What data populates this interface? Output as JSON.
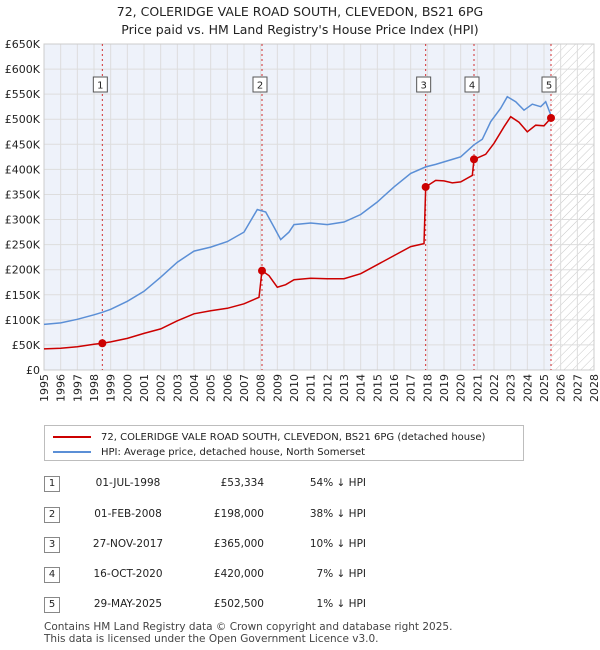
{
  "chart_data": {
    "type": "line",
    "title_line1": "72, COLERIDGE VALE ROAD SOUTH, CLEVEDON, BS21 6PG",
    "title_line2": "Price paid vs. HM Land Registry's House Price Index (HPI)",
    "xlim": [
      1995,
      2028
    ],
    "ylim": [
      0,
      650000
    ],
    "y_ticks": [
      0,
      50000,
      100000,
      150000,
      200000,
      250000,
      300000,
      350000,
      400000,
      450000,
      500000,
      550000,
      600000,
      650000
    ],
    "y_tick_labels": [
      "£0",
      "£50K",
      "£100K",
      "£150K",
      "£200K",
      "£250K",
      "£300K",
      "£350K",
      "£400K",
      "£450K",
      "£500K",
      "£550K",
      "£600K",
      "£650K"
    ],
    "x_ticks": [
      1995,
      1996,
      1997,
      1998,
      1999,
      2000,
      2001,
      2002,
      2003,
      2004,
      2005,
      2006,
      2007,
      2008,
      2009,
      2010,
      2011,
      2012,
      2013,
      2014,
      2015,
      2016,
      2017,
      2018,
      2019,
      2020,
      2021,
      2022,
      2023,
      2024,
      2025,
      2026,
      2027,
      2028
    ],
    "hatch_from": 2025.42,
    "colors": {
      "property": "#cc0000",
      "hpi": "#5b8fd6",
      "marker_line": "#cc0000",
      "grid": "#dddddd",
      "plot_bg": "#eef2fa"
    },
    "series": [
      {
        "name": "72, COLERIDGE VALE ROAD SOUTH, CLEVEDON, BS21 6PG (detached house)",
        "points": [
          [
            1995.0,
            42000
          ],
          [
            1996.0,
            43500
          ],
          [
            1997.0,
            46500
          ],
          [
            1998.0,
            51500
          ],
          [
            1998.5,
            53334
          ],
          [
            1999.0,
            56000
          ],
          [
            2000.0,
            63000
          ],
          [
            2001.0,
            73000
          ],
          [
            2002.0,
            82000
          ],
          [
            2003.0,
            98000
          ],
          [
            2004.0,
            112000
          ],
          [
            2005.0,
            118000
          ],
          [
            2006.0,
            123000
          ],
          [
            2007.0,
            132000
          ],
          [
            2007.9,
            145000
          ],
          [
            2008.08,
            198000
          ],
          [
            2008.5,
            188000
          ],
          [
            2009.0,
            165000
          ],
          [
            2009.5,
            170000
          ],
          [
            2010.0,
            180000
          ],
          [
            2011.0,
            183000
          ],
          [
            2012.0,
            182000
          ],
          [
            2013.0,
            182000
          ],
          [
            2014.0,
            192000
          ],
          [
            2015.0,
            210000
          ],
          [
            2016.0,
            228000
          ],
          [
            2017.0,
            246000
          ],
          [
            2017.8,
            252000
          ],
          [
            2017.9,
            365000
          ],
          [
            2018.5,
            378000
          ],
          [
            2019.0,
            377000
          ],
          [
            2019.5,
            373000
          ],
          [
            2020.0,
            375000
          ],
          [
            2020.7,
            388000
          ],
          [
            2020.8,
            420000
          ],
          [
            2021.5,
            430000
          ],
          [
            2022.0,
            452000
          ],
          [
            2022.6,
            485000
          ],
          [
            2023.0,
            505000
          ],
          [
            2023.5,
            494000
          ],
          [
            2024.0,
            475000
          ],
          [
            2024.5,
            488000
          ],
          [
            2025.0,
            487000
          ],
          [
            2025.42,
            502500
          ]
        ]
      },
      {
        "name": "HPI: Average price, detached house, North Somerset",
        "points": [
          [
            1995.0,
            91000
          ],
          [
            1996.0,
            94000
          ],
          [
            1997.0,
            101000
          ],
          [
            1998.0,
            110000
          ],
          [
            1998.5,
            115000
          ],
          [
            1999.0,
            121000
          ],
          [
            2000.0,
            137000
          ],
          [
            2001.0,
            157000
          ],
          [
            2002.0,
            185000
          ],
          [
            2003.0,
            215000
          ],
          [
            2004.0,
            237000
          ],
          [
            2005.0,
            245000
          ],
          [
            2006.0,
            256000
          ],
          [
            2007.0,
            275000
          ],
          [
            2007.8,
            320000
          ],
          [
            2008.3,
            315000
          ],
          [
            2008.8,
            285000
          ],
          [
            2009.2,
            260000
          ],
          [
            2009.7,
            275000
          ],
          [
            2010.0,
            290000
          ],
          [
            2011.0,
            293000
          ],
          [
            2012.0,
            290000
          ],
          [
            2013.0,
            295000
          ],
          [
            2014.0,
            310000
          ],
          [
            2015.0,
            335000
          ],
          [
            2016.0,
            365000
          ],
          [
            2017.0,
            392000
          ],
          [
            2017.9,
            405000
          ],
          [
            2018.5,
            410000
          ],
          [
            2019.0,
            415000
          ],
          [
            2019.5,
            420000
          ],
          [
            2020.0,
            425000
          ],
          [
            2020.8,
            449000
          ],
          [
            2021.3,
            460000
          ],
          [
            2021.8,
            495000
          ],
          [
            2022.4,
            522000
          ],
          [
            2022.8,
            545000
          ],
          [
            2023.3,
            535000
          ],
          [
            2023.8,
            518000
          ],
          [
            2024.3,
            530000
          ],
          [
            2024.8,
            525000
          ],
          [
            2025.1,
            535000
          ],
          [
            2025.42,
            507500
          ]
        ]
      }
    ],
    "sales": [
      {
        "id": "1",
        "x": 1998.5,
        "price": 53334
      },
      {
        "id": "2",
        "x": 2008.08,
        "price": 198000
      },
      {
        "id": "3",
        "x": 2017.9,
        "price": 365000
      },
      {
        "id": "4",
        "x": 2020.8,
        "price": 420000
      },
      {
        "id": "5",
        "x": 2025.42,
        "price": 502500
      }
    ]
  },
  "legend": {
    "property_label": "72, COLERIDGE VALE ROAD SOUTH, CLEVEDON, BS21 6PG (detached house)",
    "hpi_label": "HPI: Average price, detached house, North Somerset"
  },
  "sales_table": [
    {
      "num": "1",
      "date": "01-JUL-1998",
      "price": "£53,334",
      "hpi": "54% ↓ HPI"
    },
    {
      "num": "2",
      "date": "01-FEB-2008",
      "price": "£198,000",
      "hpi": "38% ↓ HPI"
    },
    {
      "num": "3",
      "date": "27-NOV-2017",
      "price": "£365,000",
      "hpi": "10% ↓ HPI"
    },
    {
      "num": "4",
      "date": "16-OCT-2020",
      "price": "£420,000",
      "hpi": "7% ↓ HPI"
    },
    {
      "num": "5",
      "date": "29-MAY-2025",
      "price": "£502,500",
      "hpi": "1% ↓ HPI"
    }
  ],
  "footer": {
    "line1": "Contains HM Land Registry data © Crown copyright and database right 2025.",
    "line2": "This data is licensed under the Open Government Licence v3.0."
  }
}
